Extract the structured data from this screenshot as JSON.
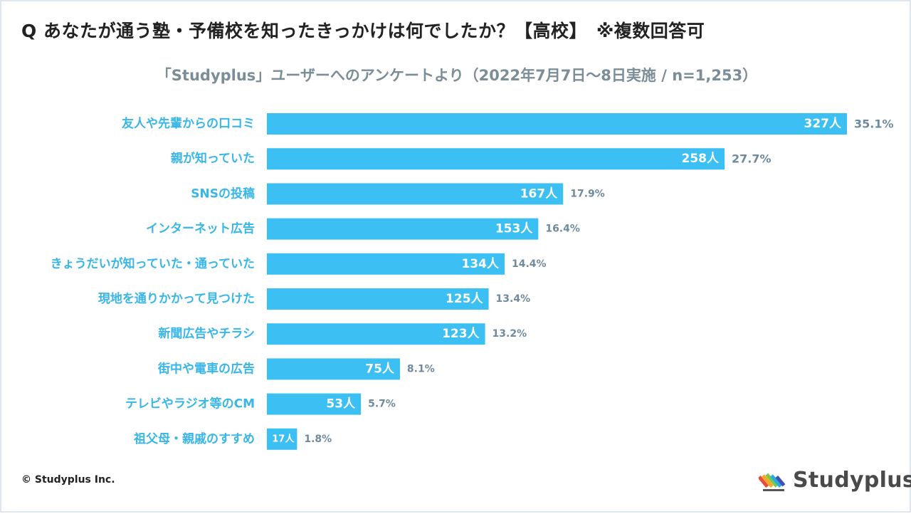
{
  "title": "Q あなたが通う塾・予備校を知ったきっかけは何でしたか？【高校】　※複数回答可",
  "subtitle": "「Studyplus」ユーザーへのアンケートより（2022年7月7日〜8日実施 / n=1,253）",
  "copyright": "© Studyplus Inc.",
  "logo_text": "Studyplus",
  "colors": {
    "bar": "#3cc0f3",
    "category_label": "#38b6e8",
    "percent_label": "#6f8a9e",
    "subtitle": "#7b8d97"
  },
  "chart_data": {
    "type": "bar",
    "orientation": "horizontal",
    "title": "Q あなたが通う塾・予備校を知ったきっかけは何でしたか？【高校】　※複数回答可",
    "subtitle": "「Studyplus」ユーザーへのアンケートより（2022年7月7日〜8日実施 / n=1,253）",
    "categories": [
      "友人や先輩からの口コミ",
      "親が知っていた",
      "SNSの投稿",
      "インターネット広告",
      "きょうだいが知っていた・通っていた",
      "現地を通りかかって見つけた",
      "新聞広告やチラシ",
      "街中や電車の広告",
      "テレビやラジオ等のCM",
      "祖父母・親戚のすすめ"
    ],
    "values": [
      327,
      258,
      167,
      153,
      134,
      125,
      123,
      75,
      53,
      17
    ],
    "count_labels": [
      "327人",
      "258人",
      "167人",
      "153人",
      "134人",
      "125人",
      "123人",
      "75人",
      "53人",
      "17人"
    ],
    "percent_labels": [
      "35.1%",
      "27.7%",
      "17.9%",
      "16.4%",
      "14.4%",
      "13.4%",
      "13.2%",
      "8.1%",
      "5.7%",
      "1.8%"
    ],
    "unit": "人",
    "xlim": [
      0,
      327
    ],
    "grid": false,
    "legend": "none"
  }
}
